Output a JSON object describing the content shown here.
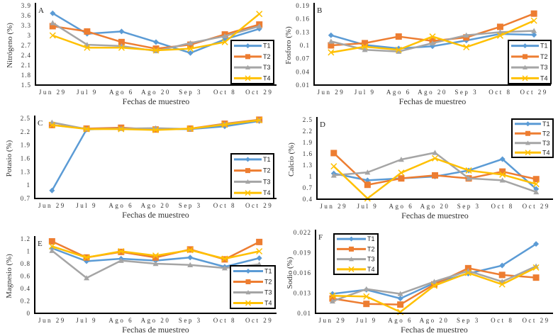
{
  "colors": {
    "T1": "#5B9BD5",
    "T2": "#ED7D31",
    "T3": "#A5A5A5",
    "T4": "#FFC000"
  },
  "markers": {
    "T1": "diamond",
    "T2": "square",
    "T3": "triangle",
    "T4": "x"
  },
  "chart_data": [
    {
      "panel": "A",
      "type": "line",
      "xlabel": "Fechas de muestreo",
      "ylabel": "Nitrógeno (%)",
      "ylim": [
        1.5,
        3.9
      ],
      "yticks": [
        "1.5",
        "1.8",
        "2.1",
        "2.4",
        "2.7",
        "3",
        "3.3",
        "3.6",
        "3.9"
      ],
      "legend": "bottom-right",
      "categories": [
        "Jun 29",
        "Jul 9",
        "Ago 6",
        "Ago 20",
        "Sep 3",
        "Oct 8",
        "Oct 29"
      ],
      "series": [
        {
          "name": "T1",
          "values": [
            3.67,
            3.05,
            3.12,
            2.8,
            2.47,
            2.88,
            3.2
          ]
        },
        {
          "name": "T2",
          "values": [
            3.28,
            3.12,
            2.8,
            2.6,
            2.72,
            3.03,
            3.33
          ]
        },
        {
          "name": "T3",
          "values": [
            3.38,
            2.72,
            2.68,
            2.53,
            2.77,
            2.98,
            3.28
          ]
        },
        {
          "name": "T4",
          "values": [
            3.0,
            2.63,
            2.63,
            2.55,
            2.6,
            2.8,
            3.65
          ]
        }
      ]
    },
    {
      "panel": "B",
      "type": "line",
      "xlabel": "Fechas de muestreo",
      "ylabel": "Fosforo (%)",
      "ylim": [
        0.01,
        0.19
      ],
      "yticks": [
        "0.01",
        "0.04",
        "0.07",
        "0.1",
        "0.13",
        "0.16",
        "0.19"
      ],
      "legend": "bottom-right",
      "categories": [
        "Jun 29",
        "Jul 9",
        "Ago 6",
        "Ago 20",
        "Sep 3",
        "Oct 8",
        "Oct 29"
      ],
      "series": [
        {
          "name": "T1",
          "values": [
            0.123,
            0.101,
            0.093,
            0.098,
            0.111,
            0.126,
            0.124
          ]
        },
        {
          "name": "T2",
          "values": [
            0.1,
            0.105,
            0.12,
            0.11,
            0.118,
            0.142,
            0.172
          ]
        },
        {
          "name": "T3",
          "values": [
            0.109,
            0.09,
            0.086,
            0.105,
            0.123,
            0.13,
            0.133
          ]
        },
        {
          "name": "T4",
          "values": [
            0.084,
            0.097,
            0.09,
            0.12,
            0.096,
            0.122,
            0.156
          ]
        }
      ]
    },
    {
      "panel": "C",
      "type": "line",
      "xlabel": "Fechas de muestreo",
      "ylabel": "Potasio (%)",
      "ylim": [
        0.7,
        2.5
      ],
      "yticks": [
        "0.7",
        "1",
        "1.3",
        "1.6",
        "1.9",
        "2.2",
        "2.5"
      ],
      "legend": "bottom-right",
      "categories": [
        "Jun 29",
        "Jul 9",
        "Ago 6",
        "Ago 20",
        "Sep 3",
        "Oct 8",
        "Oct 29"
      ],
      "series": [
        {
          "name": "T1",
          "values": [
            0.88,
            2.25,
            2.28,
            2.26,
            2.26,
            2.32,
            2.44
          ]
        },
        {
          "name": "T2",
          "values": [
            2.35,
            2.27,
            2.29,
            2.25,
            2.27,
            2.38,
            2.47
          ]
        },
        {
          "name": "T3",
          "values": [
            2.41,
            2.26,
            2.27,
            2.28,
            2.26,
            2.37,
            2.46
          ]
        },
        {
          "name": "T4",
          "values": [
            2.35,
            2.26,
            2.26,
            2.24,
            2.27,
            2.36,
            2.46
          ]
        }
      ]
    },
    {
      "panel": "D",
      "type": "line",
      "xlabel": "Fechas de muestreo",
      "ylabel": "Calcio (%)",
      "ylim": [
        0.4,
        2.5
      ],
      "yticks": [
        "0.4",
        "0.7",
        "1",
        "1.3",
        "1.6",
        "1.9",
        "2.2",
        "2.5"
      ],
      "legend": "top-right",
      "categories": [
        "Jun 29",
        "Jul 9",
        "Ago 6",
        "Ago 20",
        "Sep 3",
        "Oct 8",
        "Oct 29"
      ],
      "series": [
        {
          "name": "T1",
          "values": [
            1.08,
            0.9,
            0.95,
            1.0,
            1.16,
            1.46,
            0.67
          ]
        },
        {
          "name": "T2",
          "values": [
            1.62,
            0.78,
            0.95,
            1.03,
            0.95,
            1.13,
            0.93
          ]
        },
        {
          "name": "T3",
          "values": [
            1.03,
            1.11,
            1.45,
            1.63,
            0.95,
            0.9,
            0.59
          ]
        },
        {
          "name": "T4",
          "values": [
            1.27,
            0.42,
            1.1,
            1.48,
            1.16,
            1.05,
            0.8
          ]
        }
      ]
    },
    {
      "panel": "E",
      "type": "line",
      "xlabel": "Fechas de muestreo",
      "ylabel": "Magnesio (%)",
      "ylim": [
        0,
        1.2
      ],
      "yticks": [
        "0",
        "0.2",
        "0.4",
        "0.6",
        "0.8",
        "1",
        "1.2"
      ],
      "legend": "bottom-right",
      "categories": [
        "Jun 29",
        "Jul 9",
        "Ago 6",
        "Ago 20",
        "Sep 3",
        "Oct 8",
        "Oct 29"
      ],
      "series": [
        {
          "name": "T1",
          "values": [
            1.05,
            0.84,
            0.88,
            0.85,
            0.9,
            0.75,
            0.89
          ]
        },
        {
          "name": "T2",
          "values": [
            1.16,
            0.9,
            0.99,
            0.9,
            1.03,
            0.87,
            1.15
          ]
        },
        {
          "name": "T3",
          "values": [
            1.01,
            0.57,
            0.85,
            0.8,
            0.78,
            0.73,
            0.79
          ]
        },
        {
          "name": "T4",
          "values": [
            1.08,
            0.9,
            1.0,
            0.93,
            1.02,
            0.88,
            1.0
          ]
        }
      ]
    },
    {
      "panel": "F",
      "type": "line",
      "xlabel": "Fechas de muestreo",
      "ylabel": "Sodio (%)",
      "ylim": [
        0.01,
        0.022
      ],
      "yticks": [
        "0.01",
        "0.013",
        "0.016",
        "0.019",
        "0.022"
      ],
      "legend": "top-left",
      "categories": [
        "Jun 29",
        "Jul 9",
        "Ago 6",
        "Ago 20",
        "Sep 3",
        "Oct 8",
        "Oct 29"
      ],
      "series": [
        {
          "name": "T1",
          "values": [
            0.0129,
            0.0135,
            0.0122,
            0.0145,
            0.0159,
            0.0171,
            0.0203
          ]
        },
        {
          "name": "T2",
          "values": [
            0.0122,
            0.0114,
            0.0113,
            0.0143,
            0.0167,
            0.0157,
            0.0153
          ]
        },
        {
          "name": "T3",
          "values": [
            0.0118,
            0.0136,
            0.0129,
            0.0147,
            0.0163,
            0.0147,
            0.017
          ]
        },
        {
          "name": "T4",
          "values": [
            0.0126,
            0.0125,
            0.0102,
            0.0141,
            0.016,
            0.0143,
            0.0168
          ]
        }
      ]
    }
  ]
}
